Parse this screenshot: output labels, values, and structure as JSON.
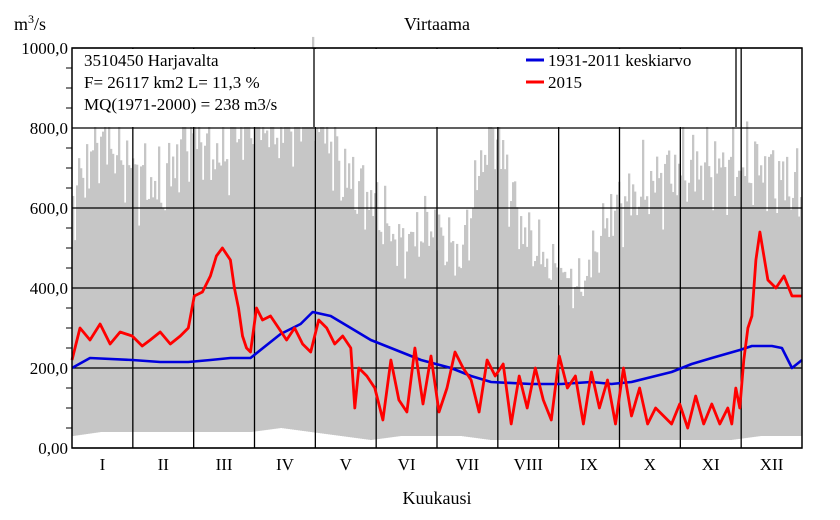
{
  "chart_data": {
    "type": "area",
    "title": "Virtaama",
    "ylabel_base": "m",
    "ylabel_sup": "3",
    "ylabel_rest": "/s",
    "xlabel": "Kuukausi",
    "ylim": [
      0,
      1000
    ],
    "yticks": [
      {
        "value": 0,
        "label": "0,00"
      },
      {
        "value": 200,
        "label": "200,0"
      },
      {
        "value": 400,
        "label": "400,0"
      },
      {
        "value": 600,
        "label": "600,0"
      },
      {
        "value": 800,
        "label": "800,0"
      },
      {
        "value": 1000,
        "label": "1000,0"
      }
    ],
    "months": [
      "I",
      "II",
      "III",
      "IV",
      "V",
      "VI",
      "VII",
      "VIII",
      "IX",
      "X",
      "XI",
      "XII"
    ],
    "info": [
      "3510450 Harjavalta",
      "F=  26117 km2 L=  11,3 %",
      "MQ(1971-2000) = 238 m3/s"
    ],
    "legend": {
      "placement": "top-right"
    },
    "colors": {
      "band": "#c6c6c6",
      "mean": "#0000dd",
      "year": "#ff0000"
    },
    "band": {
      "name": "",
      "x_day": [
        1,
        15,
        30,
        45,
        60,
        75,
        90,
        105,
        120,
        135,
        150,
        165,
        180,
        195,
        210,
        225,
        240,
        255,
        270,
        285,
        300,
        315,
        330,
        345,
        365
      ],
      "max": [
        620,
        790,
        700,
        640,
        800,
        720,
        860,
        800,
        900,
        690,
        620,
        500,
        560,
        470,
        830,
        550,
        450,
        400,
        590,
        640,
        690,
        700,
        700,
        700,
        640
      ],
      "min": [
        30,
        40,
        40,
        40,
        40,
        40,
        40,
        50,
        40,
        30,
        20,
        30,
        30,
        30,
        20,
        20,
        20,
        20,
        20,
        20,
        20,
        20,
        20,
        30,
        30
      ]
    },
    "series": [
      {
        "name": "1931-2011 keskiarvo",
        "x_day": [
          1,
          10,
          31,
          45,
          59,
          70,
          80,
          90,
          105,
          115,
          121,
          130,
          140,
          150,
          160,
          175,
          190,
          200,
          210,
          230,
          245,
          260,
          270,
          280,
          300,
          310,
          320,
          334,
          340,
          350,
          355,
          360,
          365
        ],
        "values": [
          200,
          225,
          220,
          215,
          215,
          220,
          225,
          225,
          285,
          310,
          340,
          330,
          300,
          270,
          250,
          220,
          200,
          180,
          165,
          160,
          160,
          165,
          160,
          165,
          190,
          210,
          225,
          245,
          255,
          255,
          250,
          200,
          220
        ]
      },
      {
        "name": "2015",
        "x_day": [
          1,
          5,
          10,
          15,
          20,
          25,
          31,
          36,
          40,
          45,
          50,
          55,
          59,
          62,
          66,
          70,
          73,
          76,
          80,
          82,
          84,
          86,
          88,
          90,
          93,
          96,
          100,
          104,
          108,
          112,
          116,
          120,
          124,
          128,
          132,
          136,
          140,
          142,
          144,
          148,
          152,
          156,
          160,
          164,
          168,
          172,
          176,
          180,
          184,
          188,
          192,
          196,
          200,
          204,
          208,
          212,
          216,
          220,
          224,
          228,
          232,
          236,
          240,
          244,
          248,
          252,
          256,
          260,
          264,
          268,
          272,
          276,
          280,
          284,
          288,
          292,
          296,
          300,
          304,
          308,
          312,
          316,
          320,
          324,
          328,
          330,
          332,
          334,
          336,
          338,
          340,
          342,
          344,
          348,
          352,
          356,
          360,
          365
        ],
        "values": [
          220,
          300,
          270,
          310,
          260,
          290,
          280,
          255,
          270,
          290,
          260,
          280,
          300,
          380,
          390,
          430,
          480,
          500,
          470,
          400,
          350,
          280,
          250,
          240,
          350,
          320,
          330,
          300,
          270,
          300,
          260,
          240,
          320,
          300,
          260,
          280,
          250,
          100,
          200,
          180,
          150,
          70,
          220,
          120,
          90,
          250,
          110,
          230,
          90,
          150,
          240,
          200,
          170,
          90,
          220,
          180,
          210,
          60,
          180,
          100,
          200,
          120,
          70,
          230,
          150,
          180,
          60,
          190,
          100,
          170,
          60,
          200,
          80,
          150,
          60,
          100,
          80,
          60,
          110,
          50,
          130,
          60,
          110,
          60,
          100,
          60,
          150,
          100,
          220,
          300,
          330,
          470,
          540,
          420,
          400,
          430,
          380,
          380
        ]
      }
    ]
  }
}
